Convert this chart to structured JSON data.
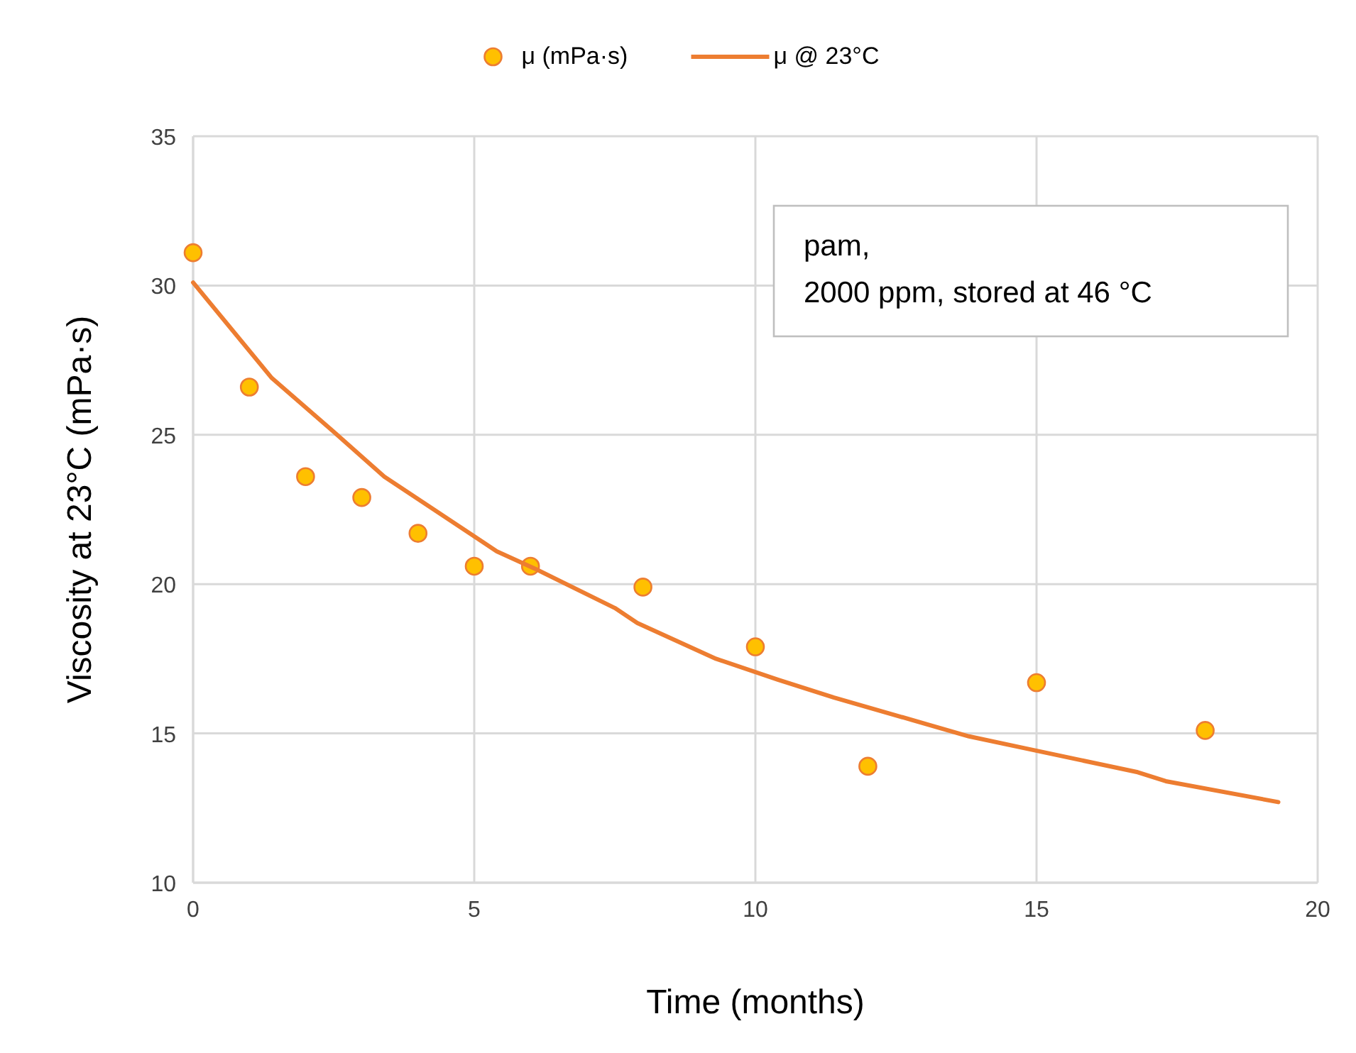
{
  "chart_data": {
    "type": "scatter",
    "xlabel": "Time (months)",
    "ylabel": "Viscosity at 23°C (mPa·s)",
    "annotations": [
      "pam,\n2000 ppm, stored at 46 °C"
    ],
    "series": [
      {
        "name": "μ (mPa·s)",
        "color": "#ffc000",
        "marker": "circle",
        "x": [
          0,
          1,
          2,
          3,
          4,
          5,
          6,
          8,
          10,
          12,
          15,
          18
        ],
        "values": [
          31.1,
          26.6,
          23.6,
          22.9,
          21.7,
          20.6,
          20.6,
          19.9,
          17.9,
          13.9,
          16.7,
          15.1
        ]
      },
      {
        "name": "μ @ 23°C",
        "type": "line",
        "color": "#ed7d31",
        "marker": "none",
        "line_style": "solid",
        "x": [
          0,
          1.4,
          2.5,
          3.4,
          5.4,
          6.1,
          7.5,
          7.9,
          9.3,
          10.4,
          11.4,
          13.8,
          14.8,
          16.8,
          17.3,
          19.3
        ],
        "values": [
          30.1,
          26.9,
          25.1,
          23.6,
          21.1,
          20.5,
          19.2,
          18.7,
          17.5,
          16.8,
          16.2,
          14.9,
          14.5,
          13.7,
          13.4,
          12.7
        ]
      }
    ],
    "xlim": [
      0,
      20
    ],
    "xticks": [
      0,
      5,
      10,
      15,
      20
    ],
    "ylim": [
      10,
      35
    ],
    "yticks": [
      10,
      15,
      20,
      25,
      30,
      35
    ],
    "grid": true,
    "legend": "top"
  }
}
